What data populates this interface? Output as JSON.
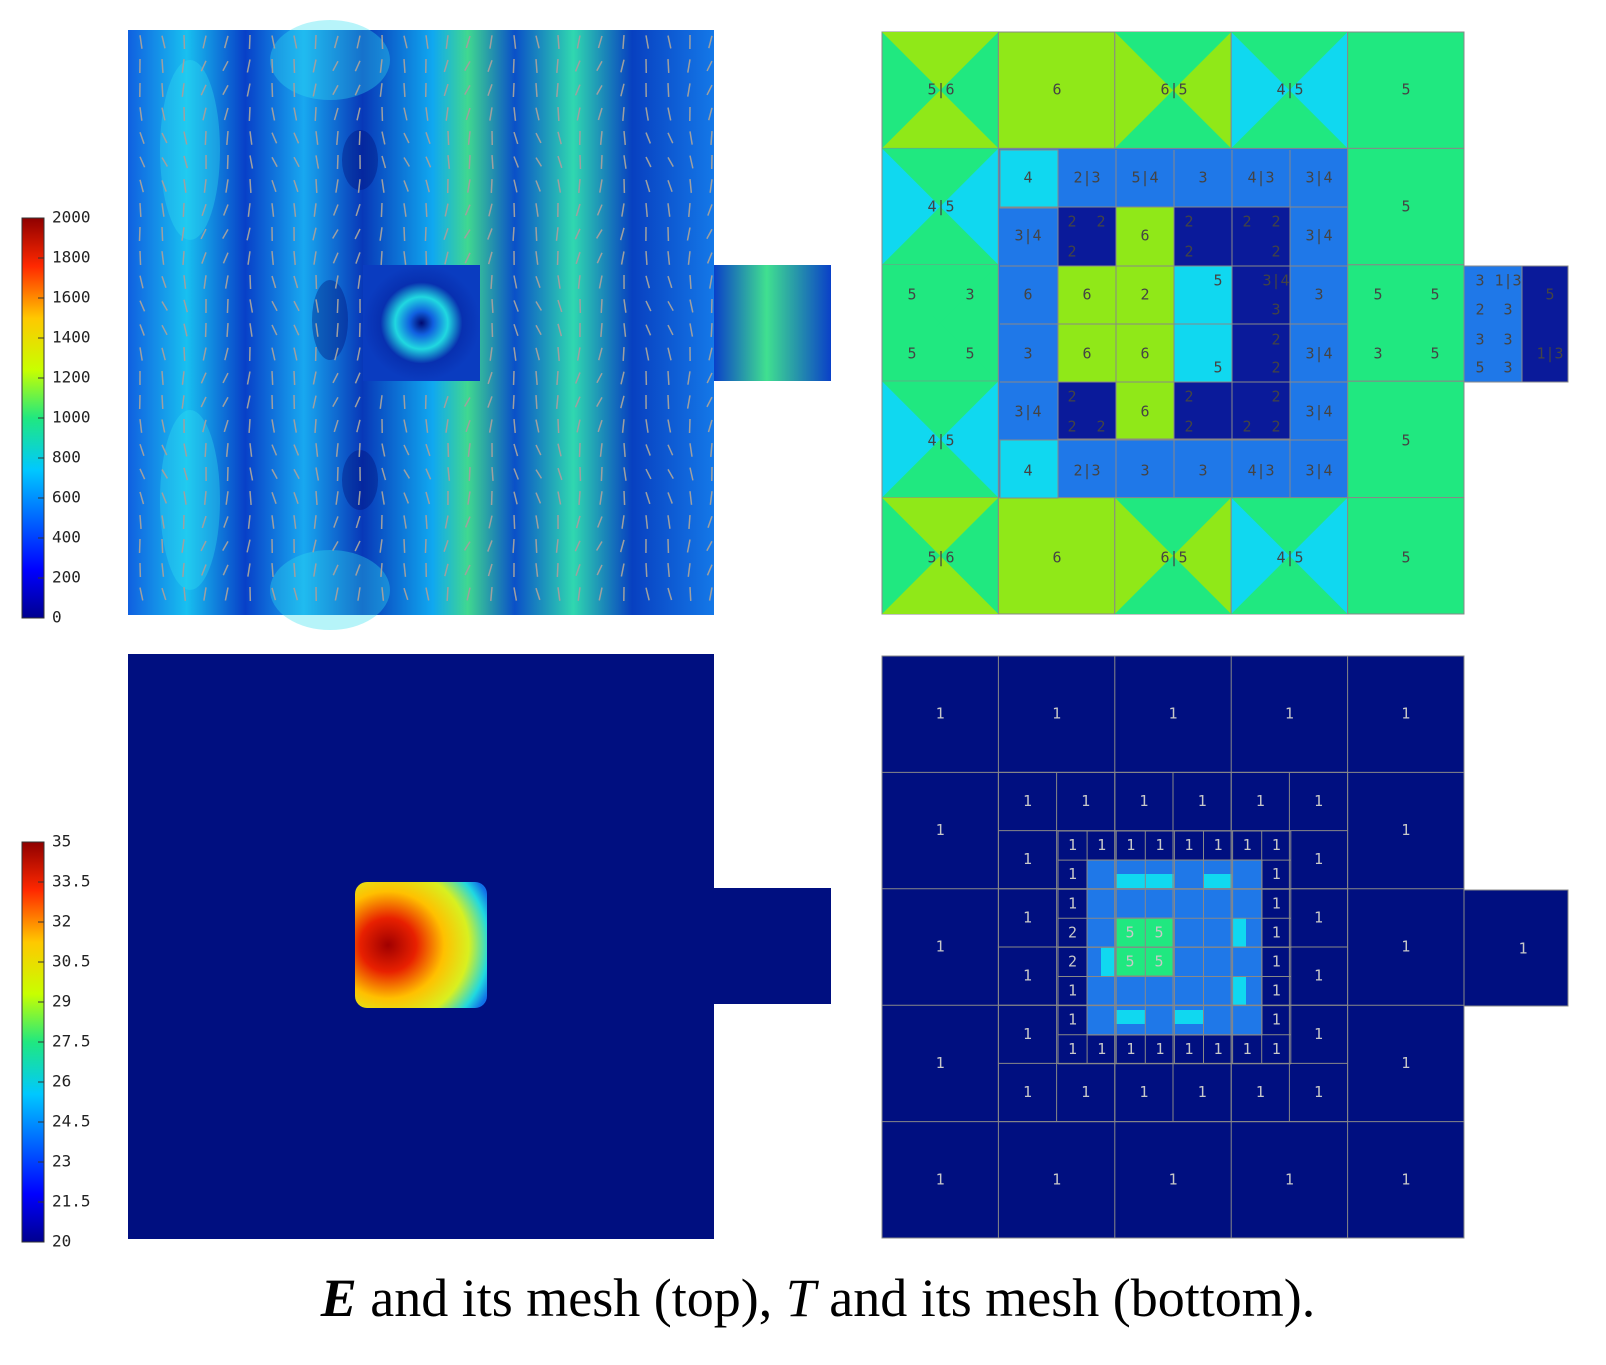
{
  "colorbars": [
    {
      "ticks": [
        2000,
        1800,
        1600,
        1400,
        1200,
        1000,
        800,
        600,
        400,
        200,
        0
      ]
    },
    {
      "ticks": [
        35,
        33.5,
        32,
        30.5,
        29,
        27.5,
        26,
        24.5,
        23,
        21.5,
        20
      ]
    }
  ],
  "top_mesh": {
    "labels": [
      "5|6",
      "6",
      "6|5",
      "4|5",
      "5",
      "4",
      "2|3",
      "5|4",
      "3",
      "4|3",
      "3|4",
      "4|5",
      "5",
      "3|4",
      "6",
      "3|4",
      "2",
      "2",
      "2",
      "2",
      "2",
      "2",
      "2",
      "2",
      "5",
      "5",
      "3",
      "6",
      "6",
      "2",
      "3|4",
      "3",
      "5",
      "5",
      "3",
      "1|3",
      "5",
      "2",
      "3",
      "3",
      "5",
      "5",
      "3",
      "6",
      "6",
      "3|4",
      "3",
      "5",
      "1|3",
      "2",
      "3",
      "3",
      "5",
      "2",
      "5",
      "3",
      "2",
      "2",
      "2",
      "3|4",
      "6",
      "3|4",
      "2",
      "2",
      "2",
      "2",
      "2",
      "4|5",
      "5",
      "4",
      "2|3",
      "3",
      "3",
      "4|3",
      "3|4",
      "5|6",
      "6",
      "6|5",
      "4|5",
      "5"
    ]
  },
  "bottom_mesh": {
    "outer": [
      "1",
      "1",
      "1",
      "1",
      "1",
      "1",
      "1",
      "1",
      "1",
      "1",
      "1",
      "1",
      "1",
      "1",
      "1",
      "1"
    ],
    "extension": "1",
    "middle": [
      "1",
      "1",
      "1",
      "1",
      "1",
      "1",
      "1",
      "1",
      "1",
      "1",
      "1",
      "1",
      "1",
      "1",
      "1",
      "1",
      "1",
      "1",
      "1",
      "1"
    ],
    "inner": [
      "1",
      "1",
      "1",
      "1",
      "1",
      "1",
      "1",
      "1",
      "1",
      "1",
      "1",
      "1",
      "2",
      "1",
      "2",
      "1",
      "1",
      "1",
      "1",
      "1",
      "1",
      "1",
      "1",
      "1",
      "1",
      "1",
      "1",
      "1"
    ],
    "center": [
      "5",
      "5",
      "5",
      "5"
    ]
  },
  "caption": [
    "E",
    " and its mesh (top), ",
    "T",
    " and its mesh (bottom)."
  ]
}
